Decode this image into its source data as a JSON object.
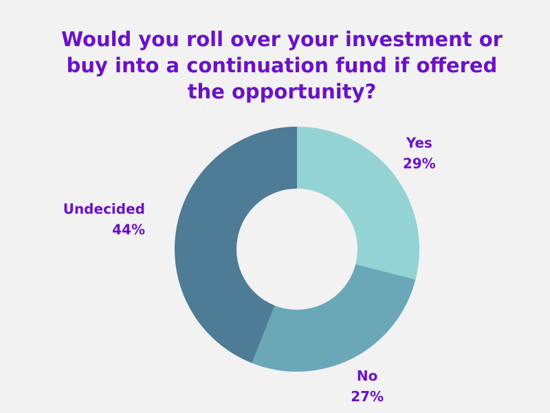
{
  "chart_data": {
    "type": "donut",
    "title": "Would you roll over your investment or buy into a continuation fund if offered the opportunity?",
    "categories": [
      "Yes",
      "No",
      "Undecided"
    ],
    "values": [
      29,
      27,
      44
    ],
    "value_labels": [
      "29%",
      "27%",
      "44%"
    ],
    "colors": [
      "#93d3d3",
      "#6aa8b8",
      "#4e7b96"
    ]
  }
}
